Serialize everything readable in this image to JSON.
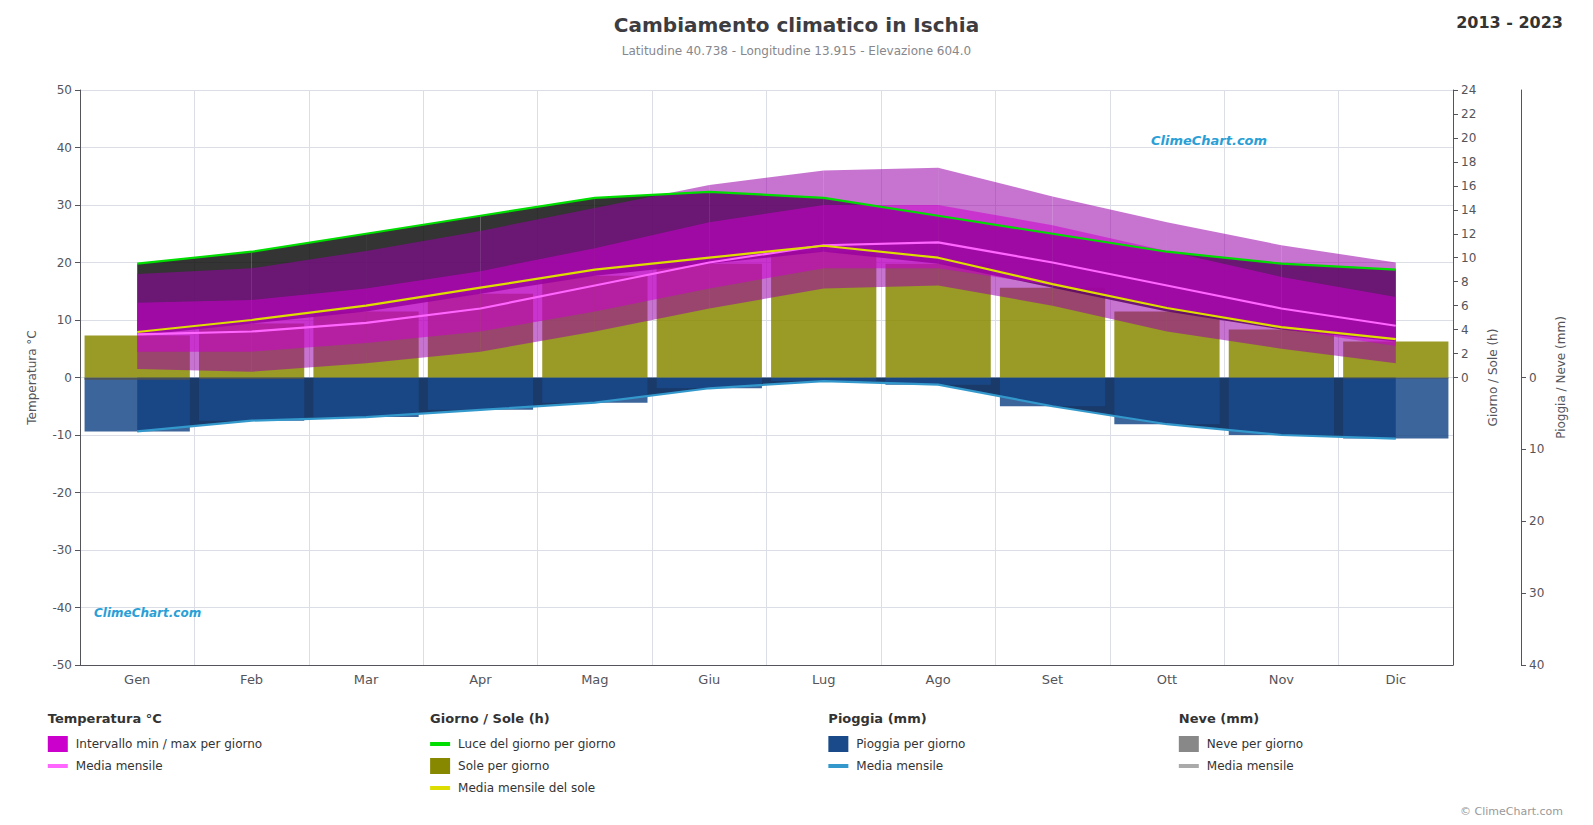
{
  "chart_data": {
    "type": "combo",
    "title": "Cambiamento climatico in Ischia",
    "subtitle": "Latitudine 40.738 - Longitudine 13.915 - Elevazione 604.0",
    "annotations": [
      "2013 - 2023",
      "ClimeChart.com",
      "ClimeChart.com",
      "© ClimeChart.com"
    ],
    "categories": [
      "Gen",
      "Feb",
      "Mar",
      "Apr",
      "Mag",
      "Giu",
      "Lug",
      "Ago",
      "Set",
      "Ott",
      "Nov",
      "Dic"
    ],
    "ylabel": "Temperatura °C",
    "ylim": [
      -50,
      50
    ],
    "yticks": [
      -50,
      -40,
      -30,
      -20,
      -10,
      0,
      10,
      20,
      30,
      40,
      50
    ],
    "y2label": "Giorno / Sole (h)",
    "y2lim": [
      -24,
      24
    ],
    "y2ticks": [
      0,
      2,
      4,
      6,
      8,
      10,
      12,
      14,
      16,
      18,
      20,
      22,
      24
    ],
    "y3label": "Pioggia / Neve (mm)",
    "y3lim": [
      40,
      -40
    ],
    "y3ticks": [
      0,
      10,
      20,
      30,
      40
    ],
    "grid": true,
    "series": [
      {
        "type": "area",
        "axis": "y3",
        "color": "#1a3a6a",
        "values": [
          7.5,
          6.0,
          5.5,
          4.5,
          3.5,
          1.5,
          0.5,
          1.0,
          4.0,
          6.5,
          8.0,
          8.5
        ]
      },
      {
        "type": "bar",
        "axis": "y3",
        "color": "#1a4a8a",
        "values": [
          7.5,
          6.0,
          5.5,
          4.5,
          3.5,
          1.5,
          0.5,
          1.0,
          4.0,
          6.5,
          8.0,
          8.5
        ]
      },
      {
        "type": "bar",
        "axis": "y3",
        "color": "#505050",
        "values": [
          0.3,
          0.2,
          0.05,
          0.0,
          0.0,
          0.0,
          0.0,
          0.0,
          0.0,
          0.0,
          0.05,
          0.15
        ]
      },
      {
        "type": "bar",
        "axis": "y2",
        "color": "#888800",
        "values": [
          3.5,
          4.5,
          5.5,
          7.0,
          8.5,
          9.5,
          10.5,
          9.5,
          7.5,
          5.5,
          4.0,
          3.0
        ]
      },
      {
        "type": "band",
        "axis": "y2",
        "color": "#111111",
        "lower": [
          3.5,
          4.5,
          5.5,
          7.0,
          8.5,
          9.5,
          10.5,
          9.5,
          7.5,
          5.5,
          4.0,
          3.0
        ],
        "upper": [
          9.5,
          10.5,
          12.0,
          13.5,
          15.0,
          15.5,
          15.0,
          13.5,
          12.0,
          10.5,
          9.5,
          9.0
        ]
      },
      {
        "type": "band",
        "axis": "y",
        "color": "#9900aa",
        "lower": [
          1.5,
          1.0,
          2.5,
          4.5,
          8.0,
          12.0,
          15.5,
          16.0,
          12.5,
          8.0,
          5.0,
          2.5
        ],
        "upper": [
          18.0,
          19.0,
          22.0,
          25.5,
          29.5,
          33.5,
          36.0,
          36.5,
          31.5,
          27.0,
          23.0,
          20.0
        ]
      },
      {
        "type": "band",
        "axis": "y",
        "color": "#cc00cc",
        "lower": [
          4.5,
          4.5,
          6.0,
          8.0,
          11.5,
          15.5,
          19.0,
          19.0,
          16.0,
          12.0,
          8.5,
          5.5
        ],
        "upper": [
          13.0,
          13.5,
          15.5,
          18.5,
          22.5,
          27.0,
          30.0,
          30.0,
          26.5,
          22.0,
          17.5,
          14.0
        ]
      },
      {
        "type": "line",
        "axis": "y",
        "color": "#ff66ff",
        "values": [
          7.5,
          8.0,
          9.5,
          12.0,
          16.0,
          20.0,
          23.0,
          23.5,
          20.0,
          16.0,
          12.0,
          9.0
        ]
      },
      {
        "type": "line",
        "axis": "y2",
        "color": "#00dd00",
        "values": [
          9.5,
          10.5,
          12.0,
          13.5,
          15.0,
          15.5,
          15.0,
          13.5,
          12.0,
          10.5,
          9.5,
          9.0
        ]
      },
      {
        "type": "line",
        "axis": "y2",
        "color": "#dddd00",
        "values": [
          3.8,
          4.8,
          6.0,
          7.5,
          9.0,
          10.0,
          11.0,
          10.0,
          7.8,
          5.8,
          4.2,
          3.2
        ]
      },
      {
        "type": "line",
        "axis": "y3",
        "color": "#3399cc",
        "values": [
          7.5,
          6.0,
          5.5,
          4.5,
          3.5,
          1.5,
          0.5,
          1.0,
          4.0,
          6.5,
          8.0,
          8.5
        ]
      }
    ],
    "legend_sections": [
      {
        "title": "Temperatura °C",
        "entries": [
          {
            "name": "Intervallo min / max per giorno",
            "color": "#cc00cc",
            "marker": "square"
          },
          {
            "name": "Media mensile",
            "color": "#ff66ff",
            "marker": "line"
          }
        ]
      },
      {
        "title": "Giorno / Sole (h)",
        "entries": [
          {
            "name": "Luce del giorno per giorno",
            "color": "#00dd00",
            "marker": "line"
          },
          {
            "name": "Sole per giorno",
            "color": "#888800",
            "marker": "square"
          },
          {
            "name": "Media mensile del sole",
            "color": "#dddd00",
            "marker": "line"
          }
        ]
      },
      {
        "title": "Pioggia (mm)",
        "entries": [
          {
            "name": "Pioggia per giorno",
            "color": "#1a4a8a",
            "marker": "square"
          },
          {
            "name": "Media mensile",
            "color": "#3399cc",
            "marker": "line"
          }
        ]
      },
      {
        "title": "Neve (mm)",
        "entries": [
          {
            "name": "Neve per giorno",
            "color": "#888888",
            "marker": "square"
          },
          {
            "name": "Media mensile",
            "color": "#aaaaaa",
            "marker": "line"
          }
        ]
      }
    ]
  }
}
